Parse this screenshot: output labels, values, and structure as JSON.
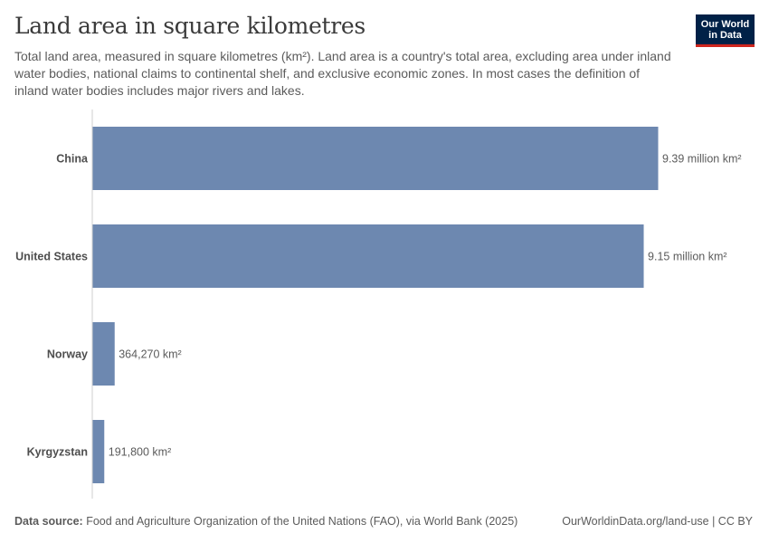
{
  "header": {
    "title": "Land area in square kilometres",
    "subtitle": "Total land area, measured in square kilometres (km²). Land area is a country's total area, excluding area under inland water bodies, national claims to continental shelf, and exclusive economic zones. In most cases the definition of inland water bodies includes major rivers and lakes."
  },
  "logo": {
    "line1": "Our World",
    "line2": "in Data"
  },
  "chart_data": {
    "type": "bar",
    "orientation": "horizontal",
    "categories": [
      "China",
      "United States",
      "Norway",
      "Kyrgyzstan"
    ],
    "values": [
      9390000,
      9150000,
      364270,
      191800
    ],
    "value_labels": [
      "9.39 million km²",
      "9.15 million km²",
      "364,270 km²",
      "191,800 km²"
    ],
    "unit": "km²",
    "xlim": [
      0,
      9390000
    ],
    "grid": false,
    "bar_color": "#6d88b0"
  },
  "footer": {
    "source_label": "Data source:",
    "source_text": "Food and Agriculture Organization of the United Nations (FAO), via World Bank (2025)",
    "url": "OurWorldinData.org/land-use | CC BY"
  }
}
